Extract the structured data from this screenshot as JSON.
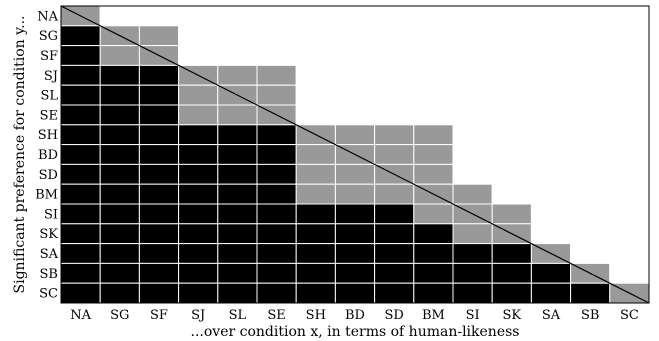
{
  "chart_data": {
    "type": "heatmap",
    "title": "",
    "xlabel": "...over condition x, in terms of human-likeness",
    "ylabel": "Significant preference for condition y...",
    "conditions": [
      "NA",
      "SG",
      "SF",
      "SJ",
      "SL",
      "SE",
      "SH",
      "BD",
      "SD",
      "BM",
      "SI",
      "SK",
      "SA",
      "SB",
      "SC"
    ],
    "diagonal_line": true,
    "legend": "none",
    "matrix": [
      [
        1,
        0,
        0,
        0,
        0,
        0,
        0,
        0,
        0,
        0,
        0,
        0,
        0,
        0,
        0
      ],
      [
        2,
        1,
        1,
        0,
        0,
        0,
        0,
        0,
        0,
        0,
        0,
        0,
        0,
        0,
        0
      ],
      [
        2,
        1,
        1,
        0,
        0,
        0,
        0,
        0,
        0,
        0,
        0,
        0,
        0,
        0,
        0
      ],
      [
        2,
        2,
        2,
        1,
        1,
        1,
        0,
        0,
        0,
        0,
        0,
        0,
        0,
        0,
        0
      ],
      [
        2,
        2,
        2,
        1,
        1,
        1,
        0,
        0,
        0,
        0,
        0,
        0,
        0,
        0,
        0
      ],
      [
        2,
        2,
        2,
        1,
        1,
        1,
        0,
        0,
        0,
        0,
        0,
        0,
        0,
        0,
        0
      ],
      [
        2,
        2,
        2,
        2,
        2,
        2,
        1,
        1,
        1,
        1,
        0,
        0,
        0,
        0,
        0
      ],
      [
        2,
        2,
        2,
        2,
        2,
        2,
        1,
        1,
        1,
        1,
        0,
        0,
        0,
        0,
        0
      ],
      [
        2,
        2,
        2,
        2,
        2,
        2,
        1,
        1,
        1,
        1,
        0,
        0,
        0,
        0,
        0
      ],
      [
        2,
        2,
        2,
        2,
        2,
        2,
        1,
        1,
        1,
        1,
        1,
        0,
        0,
        0,
        0
      ],
      [
        2,
        2,
        2,
        2,
        2,
        2,
        2,
        2,
        2,
        1,
        1,
        1,
        0,
        0,
        0
      ],
      [
        2,
        2,
        2,
        2,
        2,
        2,
        2,
        2,
        2,
        2,
        1,
        1,
        0,
        0,
        0
      ],
      [
        2,
        2,
        2,
        2,
        2,
        2,
        2,
        2,
        2,
        2,
        2,
        2,
        1,
        0,
        0
      ],
      [
        2,
        2,
        2,
        2,
        2,
        2,
        2,
        2,
        2,
        2,
        2,
        2,
        2,
        1,
        0
      ],
      [
        2,
        2,
        2,
        2,
        2,
        2,
        2,
        2,
        2,
        2,
        2,
        2,
        2,
        2,
        1
      ]
    ],
    "cell_colors": {
      "0": "#ffffff",
      "1": "#999999",
      "2": "#000000"
    },
    "grid_color": "#ffffff",
    "frame_color": "#000000"
  }
}
